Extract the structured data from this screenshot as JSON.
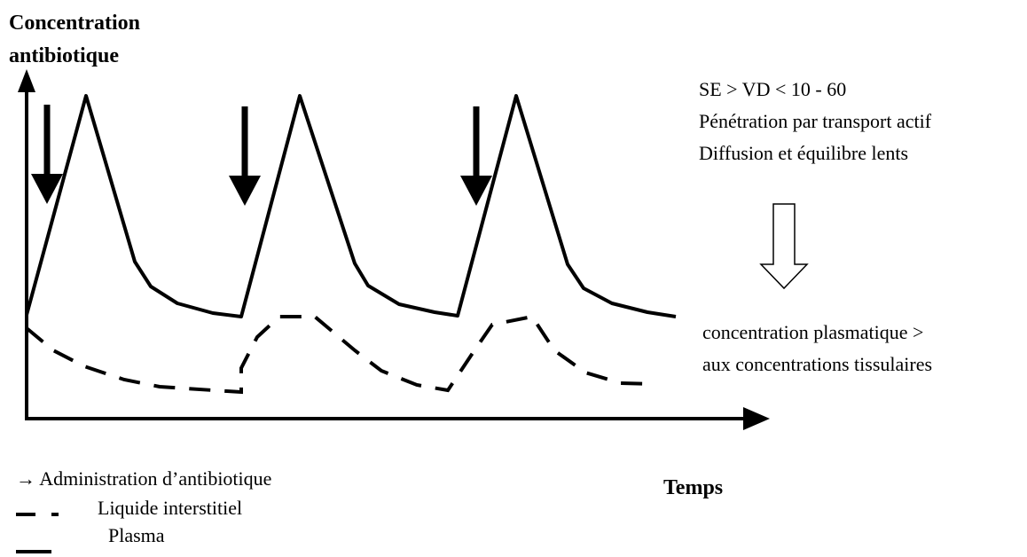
{
  "axes": {
    "y_label": [
      "Concentration",
      "antibiotique"
    ],
    "x_label": "Temps"
  },
  "annotations": {
    "properties": [
      "SE > VD < 10 - 60",
      "Pénétration par transport actif",
      "Diffusion et équilibre lents"
    ],
    "conclusion": [
      "concentration plasmatique >",
      "aux concentrations tissulaires"
    ]
  },
  "legend": {
    "administration": "→ Administration d’antibiotique",
    "interstitial": "Liquide interstitiel",
    "plasma": "Plasma"
  }
}
